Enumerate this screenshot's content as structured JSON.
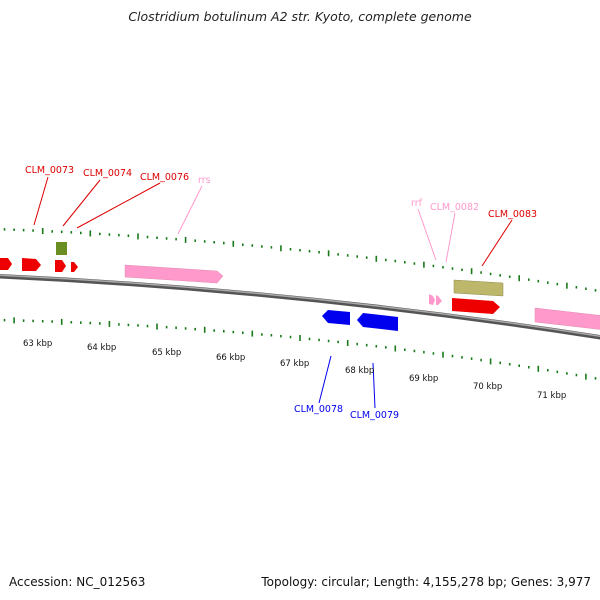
{
  "title": "Clostridium botulinum A2 str. Kyoto, complete genome",
  "footer": {
    "accession": "Accession: NC_012563",
    "stats": "Topology: circular; Length: 4,155,278 bp; Genes: 3,977"
  },
  "colors": {
    "cds": "#ee0000",
    "misc": "#6b8e23",
    "rrna": "#ff99cc",
    "reverse_cds": "#0000ee",
    "other": "#bdb76b",
    "tick": "#1a7a1a",
    "backbone": "#777777"
  },
  "kbp_labels": [
    "63 kbp",
    "64 kbp",
    "65 kbp",
    "66 kbp",
    "67 kbp",
    "68 kbp",
    "69 kbp",
    "70 kbp",
    "71 kbp"
  ],
  "gene_labels": [
    {
      "text": "CLM_0073",
      "kind": "cds"
    },
    {
      "text": "CLM_0074",
      "kind": "cds"
    },
    {
      "text": "CLM_0076",
      "kind": "cds"
    },
    {
      "text": "rrs",
      "kind": "rrna"
    },
    {
      "text": "rrf",
      "kind": "rrna"
    },
    {
      "text": "CLM_0082",
      "kind": "rrna"
    },
    {
      "text": "CLM_0083",
      "kind": "cds"
    },
    {
      "text": "CLM_0078",
      "kind": "reverse_cds"
    },
    {
      "text": "CLM_0079",
      "kind": "reverse_cds"
    }
  ]
}
